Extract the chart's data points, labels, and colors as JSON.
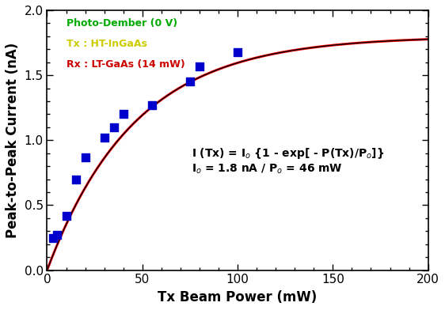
{
  "scatter_x": [
    3,
    5,
    10,
    15,
    20,
    30,
    35,
    40,
    55,
    75,
    80,
    100
  ],
  "scatter_y": [
    0.25,
    0.27,
    0.42,
    0.7,
    0.87,
    1.02,
    1.1,
    1.2,
    1.27,
    1.45,
    1.57,
    1.68
  ],
  "I0": 1.8,
  "P0": 46,
  "x_min": 0,
  "x_max": 200,
  "y_min": 0.0,
  "y_max": 2.0,
  "xlabel": "Tx Beam Power (mW)",
  "ylabel": "Peak-to-Peak Current (nA)",
  "legend_line1": "Photo-Dember (0 V)",
  "legend_line2": "Tx : HT-InGaAs",
  "legend_line3": "Rx : LT-GaAs (14 mW)",
  "legend_color1": "#00aa00",
  "legend_color2": "#cccc00",
  "legend_color3": "#cc0000",
  "eq_line1": "I (Tx) = I",
  "eq_line2": "I",
  "scatter_color": "#0000cc",
  "fit_color_red": "#ff0000",
  "fit_color_black": "#000000",
  "marker": "s",
  "marker_size": 7,
  "bg_color": "#f0f0f0"
}
